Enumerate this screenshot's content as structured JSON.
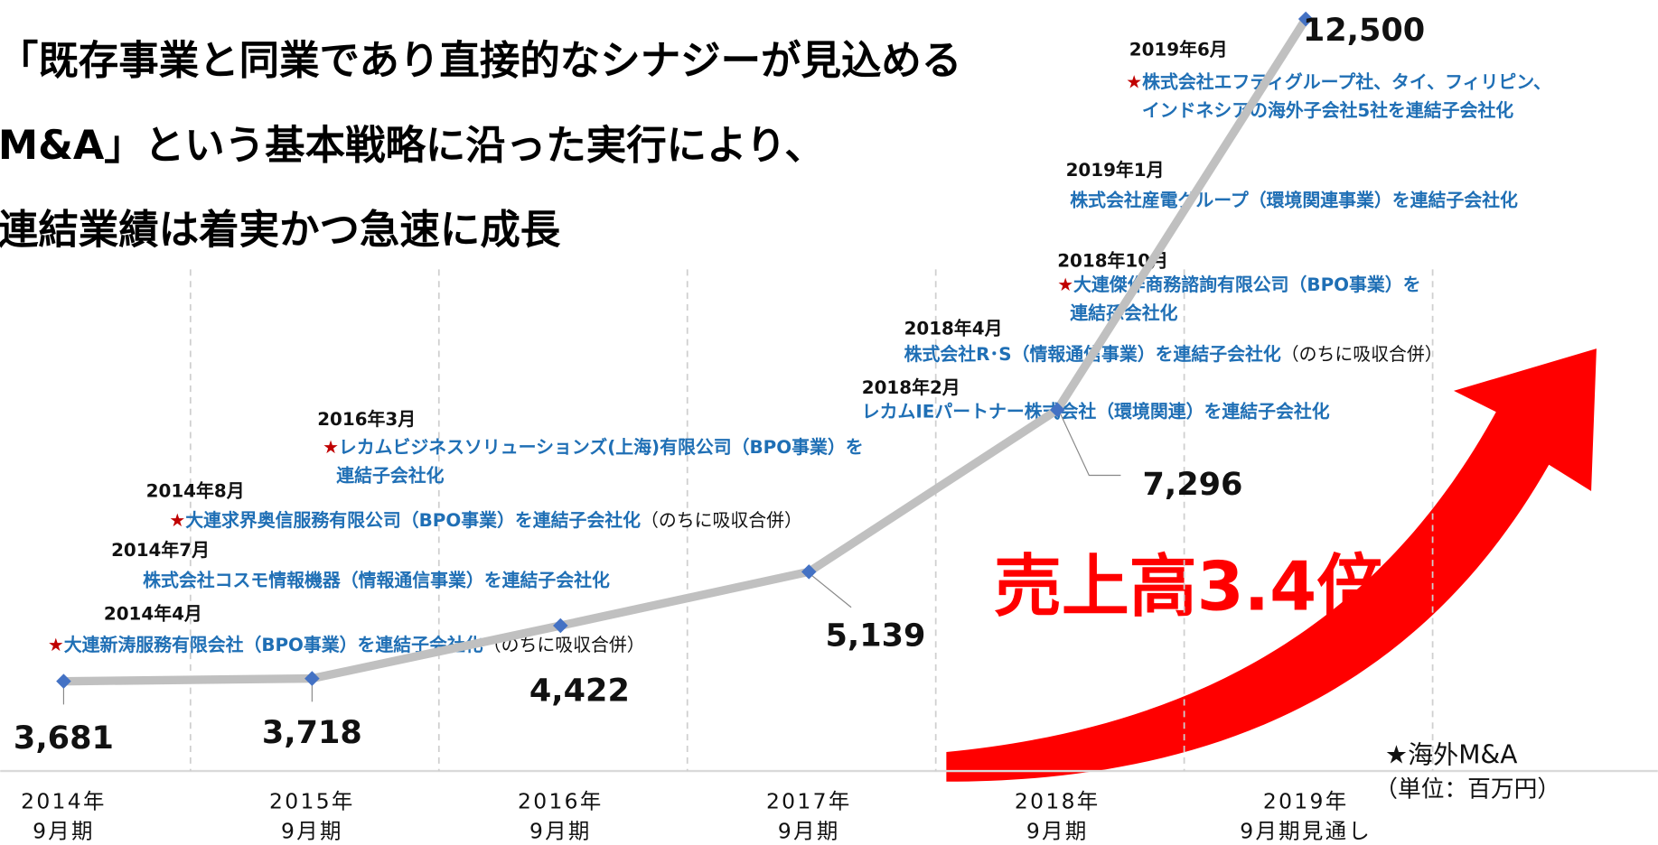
{
  "chart_data": {
    "type": "line",
    "title_lines": [
      "「既存事業と同業であり直接的なシナジーが見込める",
      "M&A」という基本戦略に沿った実行により、",
      "連結業績は着実かつ急速に成長"
    ],
    "categories": [
      [
        "2014年",
        "9月期"
      ],
      [
        "2015年",
        "9月期"
      ],
      [
        "2016年",
        "9月期"
      ],
      [
        "2017年",
        "9月期"
      ],
      [
        "2018年",
        "9月期"
      ],
      [
        "2019年",
        "9月期見通し"
      ]
    ],
    "values": [
      3681,
      3718,
      4422,
      5139,
      7296,
      12500
    ],
    "value_labels": [
      "3,681",
      "3,718",
      "4,422",
      "5,139",
      "7,296",
      "12,500"
    ],
    "color": "#c0c0c0",
    "marker_color": "#4472c4",
    "annotations": [
      {
        "date": "2014年4月",
        "star": "★",
        "lines": [
          "大連新涛服務有限会社（BPO事業）を連結子会社化"
        ],
        "note": "（のちに吸収合併）"
      },
      {
        "date": "2014年7月",
        "lines": [
          "株式会社コスモ情報機器（情報通信事業）を連結子会社化"
        ]
      },
      {
        "date": "2014年8月",
        "star": "★",
        "lines": [
          "大連求界奥信服務有限公司（BPO事業）を連結子会社化"
        ],
        "note": "（のちに吸収合併）"
      },
      {
        "date": "2016年3月",
        "star": "★",
        "lines": [
          "レカムビジネスソリューションズ(上海)有限公司（BPO事業）を",
          "連結子会社化"
        ]
      },
      {
        "date": "2018年2月",
        "lines": [
          "レカムIEパートナー株式会社（環境関連）を連結子会社化"
        ]
      },
      {
        "date": "2018年4月",
        "lines": [
          "株式会社R･S（情報通信事業）を連結子会社化"
        ],
        "note": "（のちに吸収合併）"
      },
      {
        "date": "2018年10月",
        "star": "★",
        "lines": [
          "大連傑作商務諮詢有限公司（BPO事業）を",
          "連結孫会社化"
        ]
      },
      {
        "date": "2019年1月",
        "lines": [
          "株式会社産電グループ（環境関連事業）を連結子会社化"
        ]
      },
      {
        "date": "2019年6月",
        "star": "★",
        "lines": [
          "株式会社エフティグループ社、タイ、フィリピン、",
          "インドネシアの海外子会社5社を連結子会社化"
        ]
      }
    ],
    "highlight": "売上高3.4倍",
    "legend": "★海外M&A",
    "unit": "（単位：百万円）"
  }
}
